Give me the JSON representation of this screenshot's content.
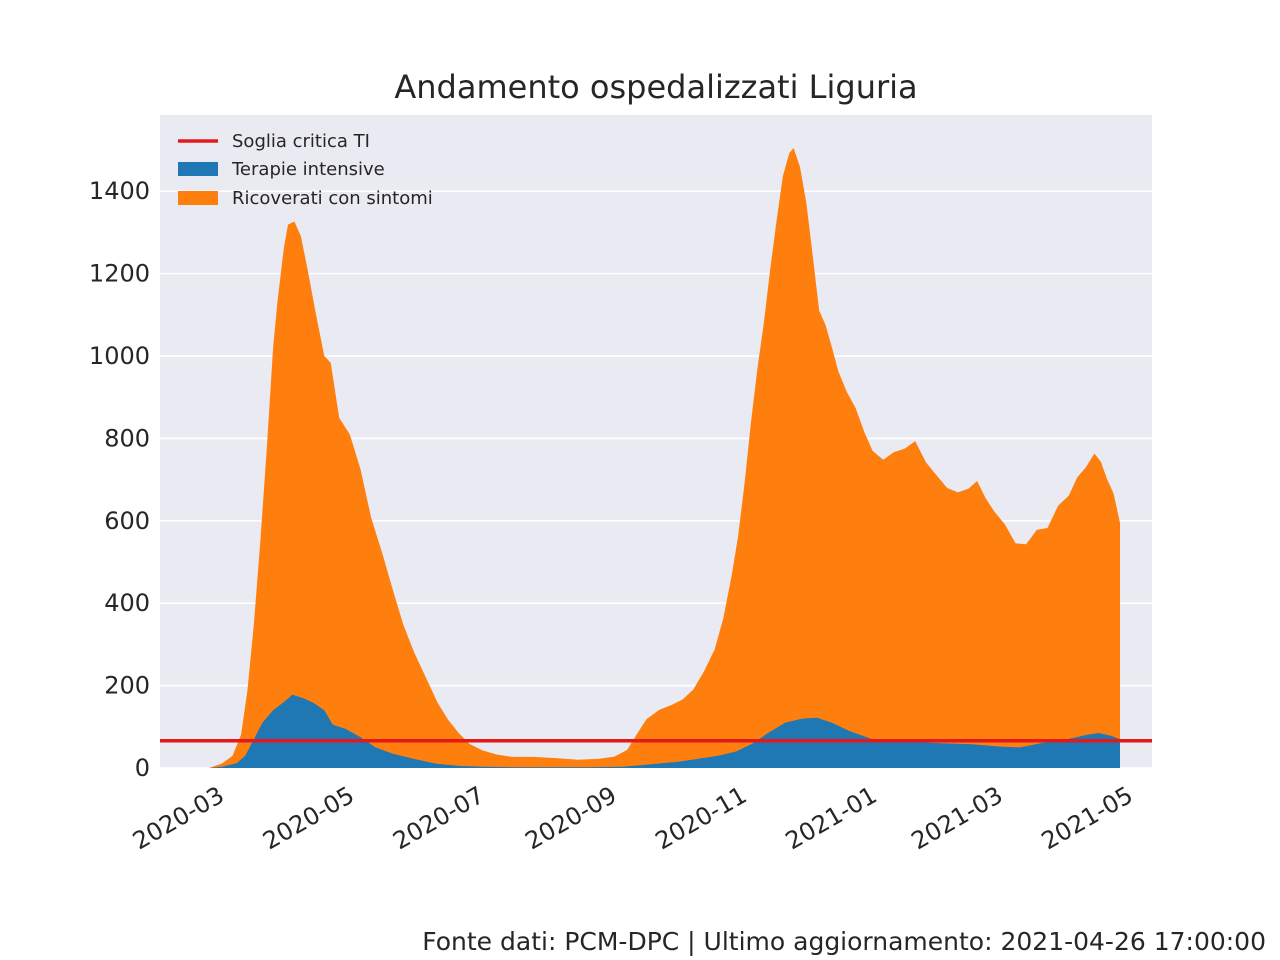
{
  "chart_data": {
    "type": "area",
    "title": "Andamento ospedalizzati Liguria",
    "xlabel": "",
    "ylabel": "",
    "ylim": [
      0,
      1585
    ],
    "xlim": [
      "2020-02-01",
      "2021-05-11"
    ],
    "grid": true,
    "legend_position": "top-left",
    "x_ticks": [
      "2020-03",
      "2020-05",
      "2020-07",
      "2020-09",
      "2020-11",
      "2021-01",
      "2021-03",
      "2021-05"
    ],
    "y_ticks": [
      0,
      200,
      400,
      600,
      800,
      1000,
      1200,
      1400
    ],
    "stacked": true,
    "series": [
      {
        "name": "Terapie intensive",
        "color": "#1f77b4",
        "points": [
          [
            "2020-02-24",
            0
          ],
          [
            "2020-03-01",
            3
          ],
          [
            "2020-03-08",
            12
          ],
          [
            "2020-03-12",
            30
          ],
          [
            "2020-03-16",
            70
          ],
          [
            "2020-03-20",
            110
          ],
          [
            "2020-03-25",
            140
          ],
          [
            "2020-03-30",
            160
          ],
          [
            "2020-04-03",
            178
          ],
          [
            "2020-04-08",
            170
          ],
          [
            "2020-04-13",
            158
          ],
          [
            "2020-04-18",
            140
          ],
          [
            "2020-04-22",
            105
          ],
          [
            "2020-04-28",
            95
          ],
          [
            "2020-05-05",
            75
          ],
          [
            "2020-05-12",
            50
          ],
          [
            "2020-05-20",
            35
          ],
          [
            "2020-05-30",
            22
          ],
          [
            "2020-06-10",
            10
          ],
          [
            "2020-06-20",
            5
          ],
          [
            "2020-07-01",
            3
          ],
          [
            "2020-07-15",
            2
          ],
          [
            "2020-08-01",
            2
          ],
          [
            "2020-08-20",
            2
          ],
          [
            "2020-09-05",
            3
          ],
          [
            "2020-09-20",
            10
          ],
          [
            "2020-10-01",
            15
          ],
          [
            "2020-10-10",
            22
          ],
          [
            "2020-10-20",
            30
          ],
          [
            "2020-10-28",
            40
          ],
          [
            "2020-11-05",
            60
          ],
          [
            "2020-11-12",
            85
          ],
          [
            "2020-11-20",
            110
          ],
          [
            "2020-11-28",
            120
          ],
          [
            "2020-12-05",
            122
          ],
          [
            "2020-12-12",
            110
          ],
          [
            "2020-12-20",
            90
          ],
          [
            "2020-12-31",
            70
          ],
          [
            "2021-01-15",
            65
          ],
          [
            "2021-02-01",
            60
          ],
          [
            "2021-02-15",
            58
          ],
          [
            "2021-03-01",
            52
          ],
          [
            "2021-03-10",
            50
          ],
          [
            "2021-03-20",
            60
          ],
          [
            "2021-04-01",
            70
          ],
          [
            "2021-04-10",
            80
          ],
          [
            "2021-04-16",
            85
          ],
          [
            "2021-04-22",
            78
          ],
          [
            "2021-04-26",
            70
          ]
        ]
      },
      {
        "name": "Ricoverati con sintomi",
        "color": "#ff7f0e",
        "points": [
          [
            "2020-02-24",
            0
          ],
          [
            "2020-03-01",
            8
          ],
          [
            "2020-03-06",
            20
          ],
          [
            "2020-03-10",
            60
          ],
          [
            "2020-03-13",
            150
          ],
          [
            "2020-03-16",
            280
          ],
          [
            "2020-03-19",
            450
          ],
          [
            "2020-03-22",
            650
          ],
          [
            "2020-03-25",
            880
          ],
          [
            "2020-03-27",
            980
          ],
          [
            "2020-03-30",
            1100
          ],
          [
            "2020-04-01",
            1150
          ],
          [
            "2020-04-04",
            1150
          ],
          [
            "2020-04-07",
            1120
          ],
          [
            "2020-04-10",
            1050
          ],
          [
            "2020-04-14",
            950
          ],
          [
            "2020-04-18",
            860
          ],
          [
            "2020-04-21",
            870
          ],
          [
            "2020-04-25",
            750
          ],
          [
            "2020-04-30",
            720
          ],
          [
            "2020-05-05",
            650
          ],
          [
            "2020-05-10",
            550
          ],
          [
            "2020-05-15",
            480
          ],
          [
            "2020-05-20",
            400
          ],
          [
            "2020-05-25",
            320
          ],
          [
            "2020-05-30",
            260
          ],
          [
            "2020-06-05",
            200
          ],
          [
            "2020-06-10",
            150
          ],
          [
            "2020-06-15",
            110
          ],
          [
            "2020-06-20",
            80
          ],
          [
            "2020-06-25",
            55
          ],
          [
            "2020-07-01",
            40
          ],
          [
            "2020-07-08",
            30
          ],
          [
            "2020-07-15",
            25
          ],
          [
            "2020-07-25",
            25
          ],
          [
            "2020-08-05",
            22
          ],
          [
            "2020-08-15",
            18
          ],
          [
            "2020-08-25",
            20
          ],
          [
            "2020-09-01",
            25
          ],
          [
            "2020-09-07",
            40
          ],
          [
            "2020-09-12",
            80
          ],
          [
            "2020-09-16",
            110
          ],
          [
            "2020-09-22",
            130
          ],
          [
            "2020-09-28",
            140
          ],
          [
            "2020-10-03",
            150
          ],
          [
            "2020-10-08",
            170
          ],
          [
            "2020-10-13",
            210
          ],
          [
            "2020-10-18",
            260
          ],
          [
            "2020-10-22",
            330
          ],
          [
            "2020-10-26",
            430
          ],
          [
            "2020-10-29",
            520
          ],
          [
            "2020-11-01",
            640
          ],
          [
            "2020-11-04",
            780
          ],
          [
            "2020-11-07",
            900
          ],
          [
            "2020-11-10",
            1000
          ],
          [
            "2020-11-13",
            1120
          ],
          [
            "2020-11-16",
            1230
          ],
          [
            "2020-11-19",
            1330
          ],
          [
            "2020-11-22",
            1380
          ],
          [
            "2020-11-24",
            1390
          ],
          [
            "2020-11-27",
            1340
          ],
          [
            "2020-11-30",
            1250
          ],
          [
            "2020-12-03",
            1120
          ],
          [
            "2020-12-06",
            990
          ],
          [
            "2020-12-09",
            960
          ],
          [
            "2020-12-12",
            910
          ],
          [
            "2020-12-15",
            860
          ],
          [
            "2020-12-19",
            820
          ],
          [
            "2020-12-23",
            790
          ],
          [
            "2020-12-27",
            740
          ],
          [
            "2020-12-31",
            700
          ],
          [
            "2021-01-05",
            680
          ],
          [
            "2021-01-10",
            700
          ],
          [
            "2021-01-15",
            710
          ],
          [
            "2021-01-20",
            730
          ],
          [
            "2021-01-25",
            680
          ],
          [
            "2021-01-30",
            650
          ],
          [
            "2021-02-04",
            620
          ],
          [
            "2021-02-09",
            610
          ],
          [
            "2021-02-14",
            620
          ],
          [
            "2021-02-18",
            640
          ],
          [
            "2021-02-22",
            600
          ],
          [
            "2021-02-26",
            570
          ],
          [
            "2021-03-03",
            540
          ],
          [
            "2021-03-08",
            495
          ],
          [
            "2021-03-13",
            490
          ],
          [
            "2021-03-18",
            520
          ],
          [
            "2021-03-23",
            520
          ],
          [
            "2021-03-28",
            570
          ],
          [
            "2021-04-02",
            590
          ],
          [
            "2021-04-06",
            630
          ],
          [
            "2021-04-10",
            650
          ],
          [
            "2021-04-14",
            680
          ],
          [
            "2021-04-17",
            660
          ],
          [
            "2021-04-20",
            620
          ],
          [
            "2021-04-23",
            590
          ],
          [
            "2021-04-26",
            525
          ]
        ]
      }
    ],
    "threshold": {
      "name": "Soglia critica TI",
      "value": 66,
      "color": "#e31a1c"
    },
    "legend": [
      "Soglia critica TI",
      "Terapie intensive",
      "Ricoverati con sintomi"
    ]
  },
  "footer": "Fonte dati: PCM-DPC | Ultimo aggiornamento: 2021-04-26 17:00:00",
  "colors": {
    "plot_bg": "#eaeaf2",
    "grid": "#ffffff",
    "text": "#262626"
  }
}
